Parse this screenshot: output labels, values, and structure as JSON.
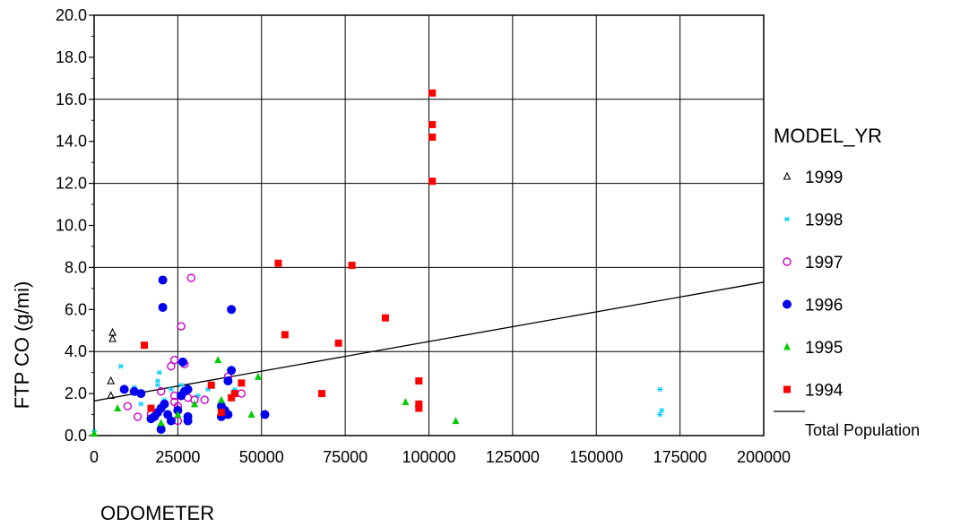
{
  "chart_data": {
    "type": "scatter",
    "xlabel": "ODOMETER",
    "ylabel": "FTP CO  (g/mi)",
    "xlim": [
      0,
      200000
    ],
    "ylim": [
      0,
      20
    ],
    "xticks": [
      0,
      25000,
      50000,
      75000,
      100000,
      125000,
      150000,
      175000,
      200000
    ],
    "xtick_labels": [
      "0",
      "25000",
      "50000",
      "75000",
      "100000",
      "125000",
      "150000",
      "175000",
      "200000"
    ],
    "yticks": [
      0,
      2,
      4,
      6,
      8,
      10,
      12,
      14,
      16,
      18,
      20
    ],
    "ytick_labels": [
      "0.0",
      "2.0",
      "4.0",
      "6.0",
      "8.0",
      "10.0",
      "12.0",
      "14.0",
      "16.0",
      "18.0",
      "20.0"
    ],
    "grid": true,
    "legend_title": "MODEL_YR",
    "legend_position": "right",
    "series": [
      {
        "name": "1999",
        "marker": "open-triangle",
        "color": "#000000",
        "points": [
          [
            5500,
            4.9
          ],
          [
            5500,
            4.6
          ],
          [
            5000,
            2.6
          ],
          [
            5000,
            1.9
          ]
        ]
      },
      {
        "name": "1998",
        "marker": "asterisk",
        "color": "#00ccff",
        "points": [
          [
            0,
            0.2
          ],
          [
            8000,
            3.3
          ],
          [
            12000,
            2.3
          ],
          [
            14000,
            1.5
          ],
          [
            19000,
            2.6
          ],
          [
            19000,
            2.4
          ],
          [
            19500,
            3.0
          ],
          [
            21000,
            1.7
          ],
          [
            23000,
            2.2
          ],
          [
            26000,
            2.4
          ],
          [
            28000,
            2.1
          ],
          [
            31000,
            1.9
          ],
          [
            34000,
            2.2
          ],
          [
            38000,
            1.6
          ],
          [
            42000,
            2.2
          ],
          [
            169000,
            2.2
          ],
          [
            169500,
            1.2
          ],
          [
            169000,
            1.0
          ]
        ]
      },
      {
        "name": "1997",
        "marker": "open-circle",
        "color": "#cc00cc",
        "points": [
          [
            10000,
            1.4
          ],
          [
            13000,
            0.9
          ],
          [
            17000,
            1.0
          ],
          [
            20000,
            2.1
          ],
          [
            23000,
            3.3
          ],
          [
            24000,
            3.6
          ],
          [
            24000,
            1.9
          ],
          [
            24000,
            1.6
          ],
          [
            25000,
            1.4
          ],
          [
            26000,
            5.2
          ],
          [
            27000,
            3.4
          ],
          [
            28000,
            1.8
          ],
          [
            29000,
            7.5
          ],
          [
            30000,
            1.7
          ],
          [
            33000,
            1.7
          ],
          [
            44000,
            2.0
          ],
          [
            40000,
            2.8
          ],
          [
            25000,
            0.7
          ]
        ]
      },
      {
        "name": "1996",
        "marker": "filled-circle",
        "color": "#0000ee",
        "points": [
          [
            9000,
            2.2
          ],
          [
            12000,
            2.1
          ],
          [
            14000,
            2.0
          ],
          [
            17000,
            0.8
          ],
          [
            18000,
            0.9
          ],
          [
            19000,
            1.1
          ],
          [
            20000,
            1.3
          ],
          [
            20000,
            0.3
          ],
          [
            20500,
            7.4
          ],
          [
            20500,
            6.1
          ],
          [
            21000,
            1.5
          ],
          [
            22000,
            1.0
          ],
          [
            23000,
            0.7
          ],
          [
            25000,
            1.2
          ],
          [
            26000,
            1.9
          ],
          [
            26500,
            3.5
          ],
          [
            27000,
            2.1
          ],
          [
            28000,
            2.2
          ],
          [
            28000,
            0.9
          ],
          [
            28000,
            0.7
          ],
          [
            38000,
            1.4
          ],
          [
            38000,
            0.9
          ],
          [
            39000,
            1.2
          ],
          [
            40000,
            1.0
          ],
          [
            40000,
            2.6
          ],
          [
            41000,
            3.1
          ],
          [
            41000,
            6.0
          ],
          [
            51000,
            1.0
          ]
        ]
      },
      {
        "name": "1995",
        "marker": "filled-triangle",
        "color": "#00cc00",
        "points": [
          [
            0,
            0.1
          ],
          [
            7000,
            1.3
          ],
          [
            20000,
            0.6
          ],
          [
            25000,
            1.0
          ],
          [
            30000,
            1.5
          ],
          [
            37000,
            3.6
          ],
          [
            38000,
            1.7
          ],
          [
            47000,
            1.0
          ],
          [
            49000,
            2.8
          ],
          [
            93000,
            1.6
          ],
          [
            108000,
            0.7
          ]
        ]
      },
      {
        "name": "1994",
        "marker": "filled-square",
        "color": "#ff0000",
        "points": [
          [
            15000,
            4.3
          ],
          [
            17000,
            1.3
          ],
          [
            35000,
            2.4
          ],
          [
            38000,
            1.1
          ],
          [
            41000,
            1.8
          ],
          [
            42000,
            2.0
          ],
          [
            44000,
            2.5
          ],
          [
            55000,
            8.2
          ],
          [
            57000,
            4.8
          ],
          [
            68000,
            2.0
          ],
          [
            73000,
            4.4
          ],
          [
            77000,
            8.1
          ],
          [
            87000,
            5.6
          ],
          [
            97000,
            2.6
          ],
          [
            97000,
            1.5
          ],
          [
            97000,
            1.3
          ],
          [
            101000,
            16.3
          ],
          [
            101000,
            14.8
          ],
          [
            101000,
            14.2
          ],
          [
            101000,
            12.1
          ]
        ]
      }
    ],
    "trend_line": {
      "name": "Total Population",
      "x": [
        0,
        200000
      ],
      "y": [
        1.65,
        7.3
      ]
    }
  }
}
